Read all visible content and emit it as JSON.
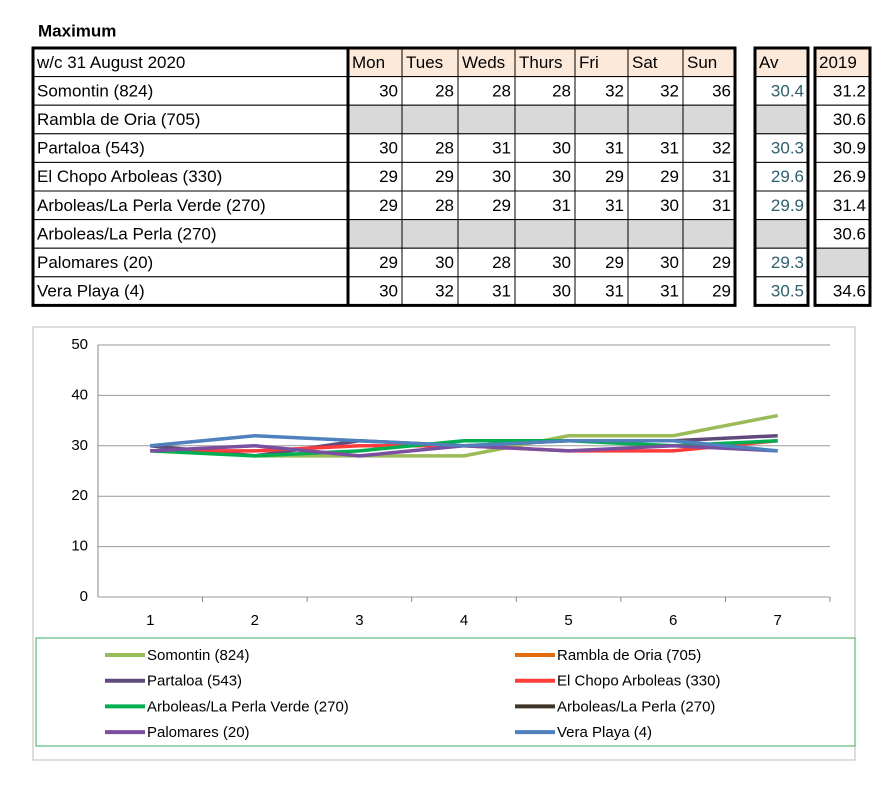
{
  "title": "Maximum",
  "table": {
    "header": [
      "w/c 31 August  2020",
      "Mon",
      "Tues",
      "Weds",
      "Thurs",
      "Fri",
      "Sat",
      "Sun",
      "Av",
      "2019"
    ],
    "rows": [
      [
        "Somontin (824)",
        30,
        28,
        28,
        28,
        32,
        32,
        36,
        30.4,
        31.2
      ],
      [
        "Rambla de Oria (705)",
        null,
        null,
        null,
        null,
        null,
        null,
        null,
        null,
        30.6
      ],
      [
        "Partaloa (543)",
        30,
        28,
        31,
        30,
        31,
        31,
        32,
        30.3,
        30.9
      ],
      [
        "El Chopo  Arboleas (330)",
        29,
        29,
        30,
        30,
        29,
        29,
        31,
        29.6,
        26.9
      ],
      [
        "Arboleas/La Perla Verde (270)",
        29,
        28,
        29,
        31,
        31,
        30,
        31,
        29.9,
        31.4
      ],
      [
        "Arboleas/La Perla (270)",
        null,
        null,
        null,
        null,
        null,
        null,
        null,
        null,
        30.6
      ],
      [
        "Palomares (20)",
        29,
        30,
        28,
        30,
        29,
        30,
        29,
        29.3,
        null
      ],
      [
        "Vera Playa (4)",
        30,
        32,
        31,
        30,
        31,
        31,
        29,
        30.5,
        34.6
      ]
    ]
  },
  "chart_data": {
    "type": "line",
    "categories": [
      "1",
      "2",
      "3",
      "4",
      "5",
      "6",
      "7"
    ],
    "ylim": [
      0,
      50
    ],
    "yticks": [
      0,
      10,
      20,
      30,
      40,
      50
    ],
    "grid": true,
    "series": [
      {
        "name": "Somontin (824)",
        "color": "#9bbb59",
        "values": [
          30,
          28,
          28,
          28,
          32,
          32,
          36
        ]
      },
      {
        "name": "Rambla de Oria (705)",
        "color": "#e46c0a",
        "values": [
          null,
          null,
          null,
          null,
          null,
          null,
          null
        ]
      },
      {
        "name": "Partaloa (543)",
        "color": "#604a7b",
        "values": [
          30,
          28,
          31,
          30,
          31,
          31,
          32
        ]
      },
      {
        "name": "El Chopo  Arboleas (330)",
        "color": "#ff3b3b",
        "values": [
          29,
          29,
          30,
          30,
          29,
          29,
          31
        ]
      },
      {
        "name": "Arboleas/La Perla Verde (270)",
        "color": "#00b050",
        "values": [
          29,
          28,
          29,
          31,
          31,
          30,
          31
        ]
      },
      {
        "name": "Arboleas/La Perla (270)",
        "color": "#403526",
        "values": [
          null,
          null,
          null,
          null,
          null,
          null,
          null
        ]
      },
      {
        "name": "Palomares (20)",
        "color": "#7a4fa0",
        "values": [
          29,
          30,
          28,
          30,
          29,
          30,
          29
        ]
      },
      {
        "name": "Vera Playa (4)",
        "color": "#4f81bd",
        "values": [
          30,
          32,
          31,
          30,
          31,
          31,
          29
        ]
      }
    ]
  }
}
